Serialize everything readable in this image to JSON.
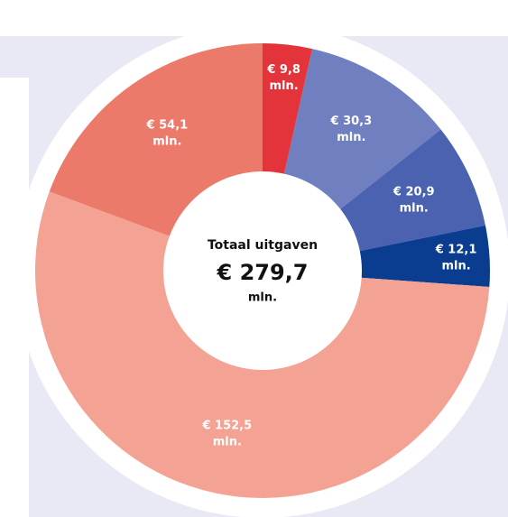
{
  "chart_data": {
    "type": "donut",
    "categories": [
      null,
      null,
      null,
      null,
      null,
      null
    ],
    "values": [
      9.8,
      30.3,
      20.9,
      12.1,
      152.5,
      54.1
    ],
    "value_labels": [
      "€ 9,8",
      "€ 30,3",
      "€ 20,9",
      "€ 12,1",
      "€ 152,5",
      "€ 54,1"
    ],
    "unit_label": "mln.",
    "colors": [
      "#e3343c",
      "#6f7fc0",
      "#4a62b0",
      "#0a3d8f",
      "#f3a293",
      "#ec7a6a"
    ],
    "center": {
      "title": "Totaal uitgaven",
      "total": {
        "value": 279.7,
        "label": "€ 279,7"
      },
      "unit": "mln."
    }
  }
}
